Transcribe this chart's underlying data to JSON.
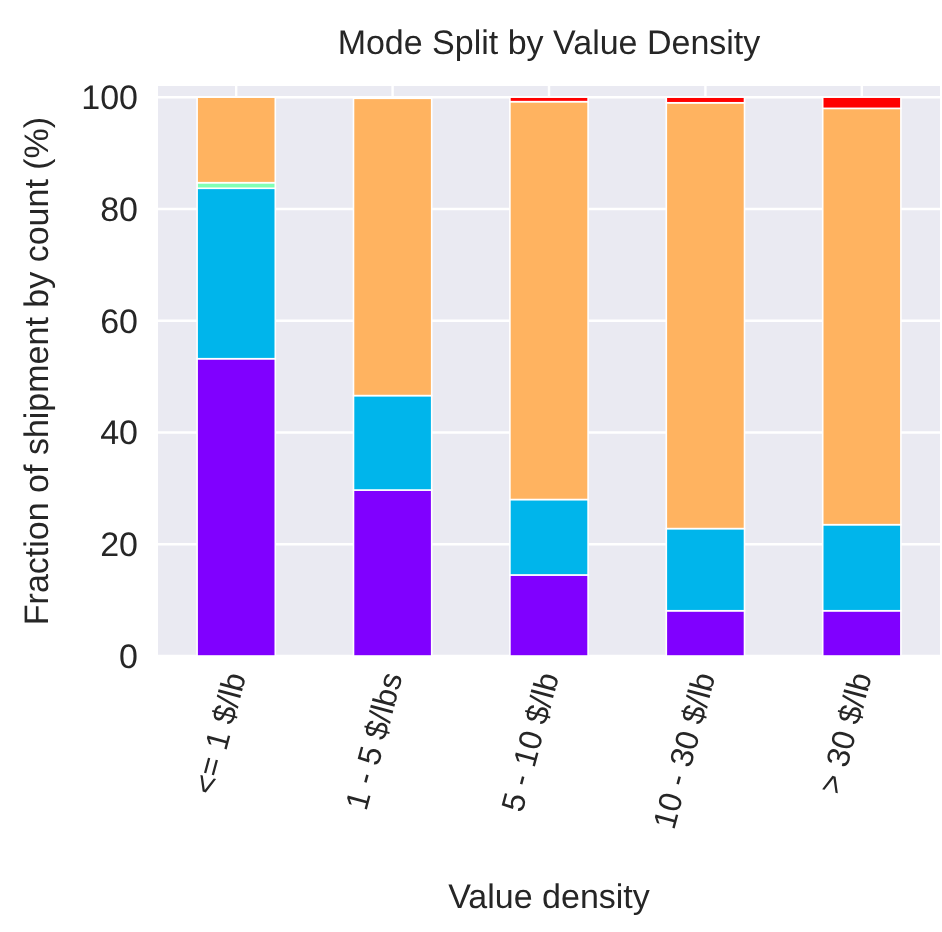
{
  "chart_data": {
    "type": "bar",
    "title": "Mode Split by Value Density",
    "xlabel": "Value density",
    "ylabel": "Fraction of shipment by count (%)",
    "categories": [
      "<= 1 $/lb",
      "1 - 5 $/lbs",
      "5 - 10 $/lb",
      "10 - 30 $/lb",
      "> 30 $/lb"
    ],
    "stacked": true,
    "series": [
      {
        "color": "#8000ff",
        "values": [
          53.2,
          29.7,
          14.5,
          8.1,
          8.1
        ]
      },
      {
        "color": "#00b5eb",
        "values": [
          30.5,
          16.9,
          13.5,
          14.7,
          15.4
        ]
      },
      {
        "color": "#80ffb4",
        "values": [
          1.0,
          0,
          0,
          0,
          0
        ]
      },
      {
        "color": "#ffb360",
        "values": [
          15.3,
          53.2,
          71.2,
          76.2,
          74.5
        ]
      },
      {
        "color": "#ff0000",
        "values": [
          0,
          0,
          0.8,
          1.0,
          2.0
        ]
      }
    ],
    "ylim": [
      0,
      102
    ],
    "yticks": [
      0,
      20,
      40,
      60,
      80,
      100
    ],
    "grid": true
  }
}
